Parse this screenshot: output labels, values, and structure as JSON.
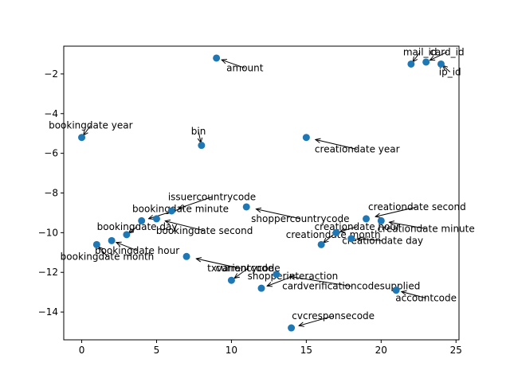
{
  "chart_data": {
    "type": "scatter",
    "title": "",
    "xlabel": "",
    "ylabel": "",
    "xlim": [
      -1.2,
      25.2
    ],
    "ylim": [
      -15.4,
      -0.6
    ],
    "xticks": [
      0,
      5,
      10,
      15,
      20,
      25
    ],
    "yticks": [
      -14,
      -12,
      -10,
      -8,
      -6,
      -4,
      -2
    ],
    "xtick_labels": [
      "0",
      "5",
      "10",
      "15",
      "20",
      "25"
    ],
    "ytick_labels": [
      "−14",
      "−12",
      "−10",
      "−8",
      "−6",
      "−4",
      "−2"
    ],
    "grid": false,
    "point_color": "#1f77b4",
    "points": [
      {
        "label": "bookingdate year",
        "x": 0,
        "y": -5.2,
        "label_x": 0.6,
        "label_y": -4.6
      },
      {
        "label": "bookingdate month",
        "x": 1,
        "y": -10.6,
        "label_x": 1.7,
        "label_y": -11.2
      },
      {
        "label": "bookingdate hour",
        "x": 2,
        "y": -10.4,
        "label_x": 3.7,
        "label_y": -10.9
      },
      {
        "label": "bookingdate day",
        "x": 3,
        "y": -10.1,
        "label_x": 3.7,
        "label_y": -9.7
      },
      {
        "label": "bookingdate minute",
        "x": 4,
        "y": -9.4,
        "label_x": 6.6,
        "label_y": -8.8
      },
      {
        "label": "bookingdate second",
        "x": 5,
        "y": -9.3,
        "label_x": 8.2,
        "label_y": -9.9
      },
      {
        "label": "issuercountrycode",
        "x": 6,
        "y": -8.9,
        "label_x": 8.7,
        "label_y": -8.2
      },
      {
        "label": "txvariantcode",
        "x": 7,
        "y": -11.2,
        "label_x": 10.6,
        "label_y": -11.8
      },
      {
        "label": "bin",
        "x": 8,
        "y": -5.6,
        "label_x": 7.8,
        "label_y": -4.9
      },
      {
        "label": "amount",
        "x": 9,
        "y": -1.2,
        "label_x": 10.9,
        "label_y": -1.7
      },
      {
        "label": "currencycode",
        "x": 10,
        "y": -12.4,
        "label_x": 11.1,
        "label_y": -11.8
      },
      {
        "label": "shoppercountrycode",
        "x": 11,
        "y": -8.7,
        "label_x": 14.6,
        "label_y": -9.3
      },
      {
        "label": "shopperinteraction",
        "x": 12,
        "y": -12.8,
        "label_x": 14.1,
        "label_y": -12.2
      },
      {
        "label": "cardverificationcodesupplied",
        "x": 13,
        "y": -12.1,
        "label_x": 18.0,
        "label_y": -12.7
      },
      {
        "label": "cvcresponsecode",
        "x": 14,
        "y": -14.8,
        "label_x": 16.8,
        "label_y": -14.2
      },
      {
        "label": "creationdate year",
        "x": 15,
        "y": -5.2,
        "label_x": 18.4,
        "label_y": -5.8
      },
      {
        "label": "creationdate month",
        "x": 16,
        "y": -10.6,
        "label_x": 16.8,
        "label_y": -10.1
      },
      {
        "label": "creationdate hour",
        "x": 17,
        "y": -10.0,
        "label_x": 18.4,
        "label_y": -9.7
      },
      {
        "label": "creationdate day",
        "x": 18,
        "y": -10.3,
        "label_x": 20.1,
        "label_y": -10.4
      },
      {
        "label": "creationdate second",
        "x": 19,
        "y": -9.3,
        "label_x": 22.4,
        "label_y": -8.7
      },
      {
        "label": "creationdate minute",
        "x": 20,
        "y": -9.4,
        "label_x": 23.0,
        "label_y": -9.8
      },
      {
        "label": "accountcode",
        "x": 21,
        "y": -12.9,
        "label_x": 23.0,
        "label_y": -13.3
      },
      {
        "label": "mail_id",
        "x": 22,
        "y": -1.5,
        "label_x": 22.6,
        "label_y": -0.9
      },
      {
        "label": "card_id",
        "x": 23,
        "y": -1.4,
        "label_x": 24.4,
        "label_y": -0.9
      },
      {
        "label": "ip_id",
        "x": 24,
        "y": -1.5,
        "label_x": 24.6,
        "label_y": -1.9
      }
    ]
  }
}
